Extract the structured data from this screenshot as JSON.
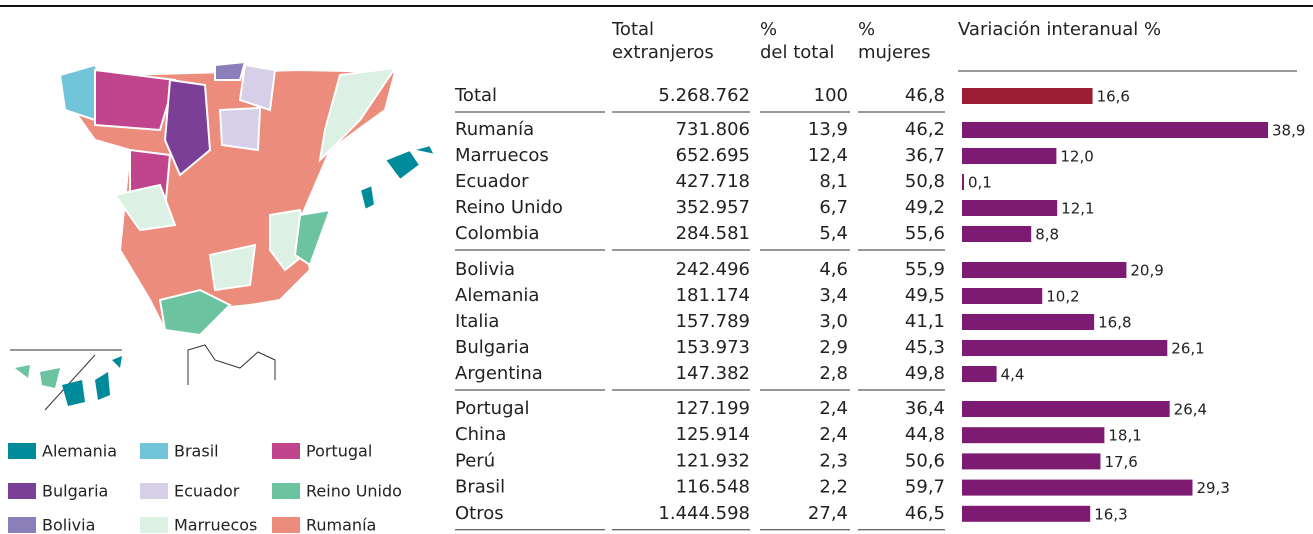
{
  "legend": [
    {
      "name": "Alemania",
      "color": "#008b9a"
    },
    {
      "name": "Brasil",
      "color": "#72c5d9"
    },
    {
      "name": "Portugal",
      "color": "#c0458d"
    },
    {
      "name": "Bulgaria",
      "color": "#7c3f98"
    },
    {
      "name": "Ecuador",
      "color": "#d6cfe7"
    },
    {
      "name": "Reino Unido",
      "color": "#6cc3a0"
    },
    {
      "name": "Bolivia",
      "color": "#8b7fb9"
    },
    {
      "name": "Marruecos",
      "color": "#dcf0e4"
    },
    {
      "name": "Rumanía",
      "color": "#ec8c7c"
    }
  ],
  "chart_data": {
    "type": "bar",
    "orientation": "horizontal",
    "columns": [
      "Total extranjeros",
      "% del total",
      "% mujeres"
    ],
    "title": "Variación interanual %",
    "categories": [
      "Total",
      "Rumanía",
      "Marruecos",
      "Ecuador",
      "Reino Unido",
      "Colombia",
      "Bolivia",
      "Alemania",
      "Italia",
      "Bulgaria",
      "Argentina",
      "Portugal",
      "China",
      "Perú",
      "Brasil",
      "Otros"
    ],
    "total_foreigners": [
      "5.268.762",
      "731.806",
      "652.695",
      "427.718",
      "352.957",
      "284.581",
      "242.496",
      "181.174",
      "157.789",
      "153.973",
      "147.382",
      "127.199",
      "125.914",
      "121.932",
      "116.548",
      "1.444.598"
    ],
    "share_of_total": [
      "100",
      "13,9",
      "12,4",
      "8,1",
      "6,7",
      "5,4",
      "4,6",
      "3,4",
      "3,0",
      "2,9",
      "2,8",
      "2,4",
      "2,4",
      "2,3",
      "2,2",
      "27,4"
    ],
    "share_women": [
      "46,8",
      "46,2",
      "36,7",
      "50,8",
      "49,2",
      "55,6",
      "55,9",
      "49,5",
      "41,1",
      "45,3",
      "49,8",
      "36,4",
      "44,8",
      "50,6",
      "59,7",
      "46,5"
    ],
    "values": [
      16.6,
      38.9,
      12.0,
      0.1,
      12.1,
      8.8,
      20.9,
      10.2,
      16.8,
      26.1,
      4.4,
      26.4,
      18.1,
      17.6,
      29.3,
      16.3
    ],
    "value_labels": [
      "16,6",
      "38,9",
      "12,0",
      "0,1",
      "12,1",
      "8,8",
      "20,9",
      "10,2",
      "16,8",
      "26,1",
      "4,4",
      "26,4",
      "18,1",
      "17,6",
      "29,3",
      "16,3"
    ],
    "colors": [
      "#9b1c33",
      "#7d1a72",
      "#7d1a72",
      "#7d1a72",
      "#7d1a72",
      "#7d1a72",
      "#7d1a72",
      "#7d1a72",
      "#7d1a72",
      "#7d1a72",
      "#7d1a72",
      "#7d1a72",
      "#7d1a72",
      "#7d1a72",
      "#7d1a72",
      "#7d1a72"
    ]
  }
}
